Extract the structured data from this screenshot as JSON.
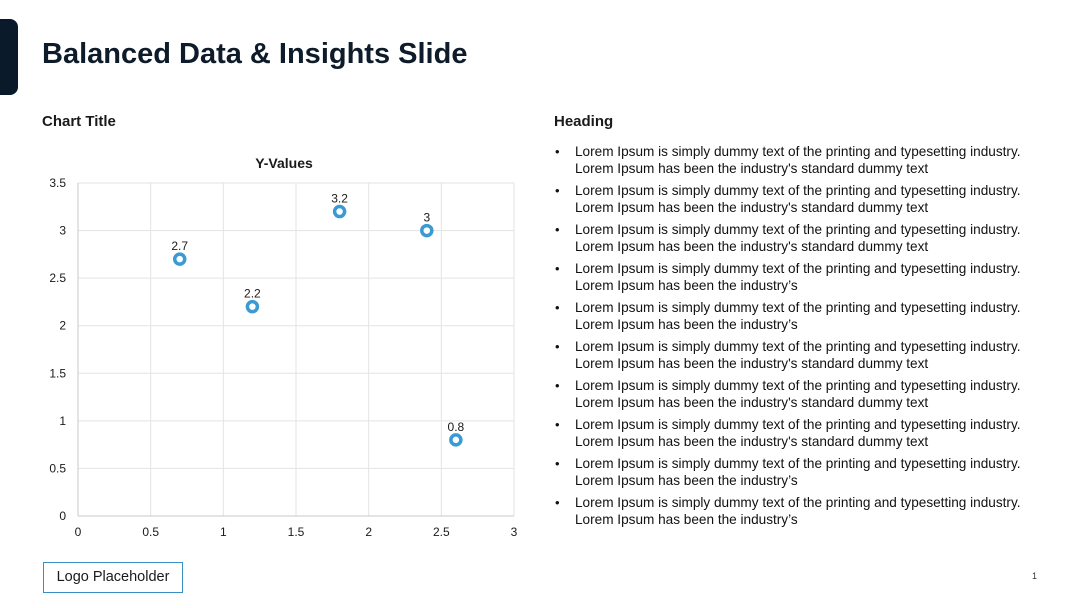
{
  "slide": {
    "title": "Balanced Data & Insights Slide",
    "chart_caption": "Chart Title",
    "right_heading": "Heading",
    "bullets": [
      "Lorem Ipsum is simply dummy text of the printing and typesetting industry. Lorem Ipsum has been the industry's standard dummy text",
      "Lorem Ipsum is simply dummy text of the printing and typesetting industry. Lorem Ipsum has been the industry's standard dummy text",
      "Lorem Ipsum is simply dummy text of the printing and typesetting industry. Lorem Ipsum has been the industry's standard dummy text",
      "Lorem Ipsum is simply dummy text of the printing and typesetting industry. Lorem Ipsum has been the industry’s",
      "Lorem Ipsum is simply dummy text of the printing and typesetting industry. Lorem Ipsum has been the industry’s",
      "Lorem Ipsum is simply dummy text of the printing and typesetting industry. Lorem Ipsum has been the industry's standard dummy text",
      "Lorem Ipsum is simply dummy text of the printing and typesetting industry. Lorem Ipsum has been the industry's standard dummy text",
      "Lorem Ipsum is simply dummy text of the printing and typesetting industry. Lorem Ipsum has been the industry's standard dummy text",
      "Lorem Ipsum is simply dummy text of the printing and typesetting industry. Lorem Ipsum has been the industry’s",
      "Lorem Ipsum is simply dummy text of the printing and typesetting industry. Lorem Ipsum has been the industry’s"
    ],
    "logo_text": "Logo Placeholder",
    "page_number": "1",
    "accent_color": "#0b1a2b"
  },
  "chart_data": {
    "type": "scatter",
    "title": "Y-Values",
    "xlabel": "",
    "ylabel": "",
    "xlim": [
      0,
      3
    ],
    "ylim": [
      0,
      3.5
    ],
    "x_ticks": [
      "0",
      "0.5",
      "1",
      "1.5",
      "2",
      "2.5",
      "3"
    ],
    "y_ticks": [
      "0",
      "0.5",
      "1",
      "1.5",
      "2",
      "2.5",
      "3",
      "3.5"
    ],
    "grid": true,
    "legend": "none",
    "marker_color": "#3a9bd4",
    "points": [
      {
        "x": 0.7,
        "y": 2.7,
        "label": "2.7"
      },
      {
        "x": 1.2,
        "y": 2.2,
        "label": "2.2"
      },
      {
        "x": 1.8,
        "y": 3.2,
        "label": "3.2"
      },
      {
        "x": 2.4,
        "y": 3.0,
        "label": "3"
      },
      {
        "x": 2.6,
        "y": 0.8,
        "label": "0.8"
      }
    ]
  }
}
